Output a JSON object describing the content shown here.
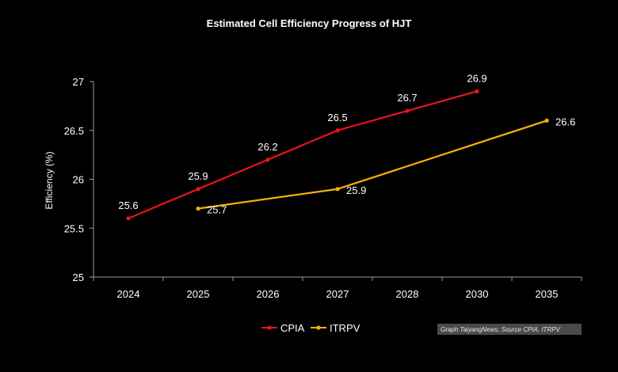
{
  "chart_data": {
    "type": "line",
    "title": "Estimated Cell Efficiency Progress of HJT",
    "ylabel": "Efficiency (%)",
    "xlabel": "",
    "categories": [
      "2024",
      "2025",
      "2026",
      "2027",
      "2028",
      "2030",
      "2035"
    ],
    "ylim": [
      25,
      27
    ],
    "yticks": [
      "25",
      "25.5",
      "26",
      "26.5",
      "27"
    ],
    "grid": false,
    "legend_position": "bottom",
    "series": [
      {
        "name": "CPIA",
        "color": "#e8141c",
        "values": [
          25.6,
          25.9,
          26.2,
          26.5,
          26.7,
          26.9,
          null
        ],
        "labels": [
          "25.6",
          "25.9",
          "26.2",
          "26.5",
          "26.7",
          "26.9",
          ""
        ]
      },
      {
        "name": "ITRPV",
        "color": "#f5b400",
        "values": [
          null,
          25.7,
          null,
          25.9,
          null,
          null,
          26.6
        ],
        "labels": [
          "",
          "25.7",
          "",
          "25.9",
          "",
          "",
          "26.6"
        ]
      }
    ],
    "source_note": "Graph TaiyangNews; Source CPIA, ITRPV"
  }
}
